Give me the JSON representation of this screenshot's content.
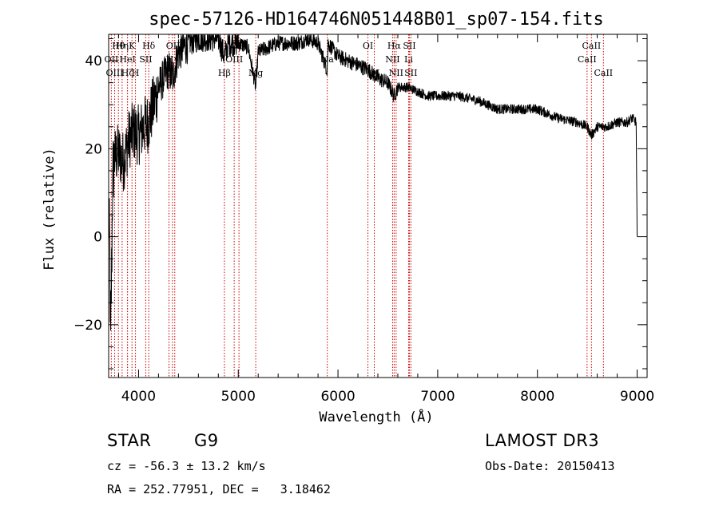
{
  "chart_data": {
    "type": "line",
    "title": "spec-57126-HD164746N051448B01_sp07-154.fits",
    "xlabel": "Wavelength (Å)",
    "ylabel": "Flux (relative)",
    "xlim": [
      3700,
      9100
    ],
    "ylim": [
      -32,
      46
    ],
    "xticks": [
      4000,
      5000,
      6000,
      7000,
      8000,
      9000
    ],
    "yticks": [
      -20,
      0,
      20,
      40
    ],
    "spectrum_anchors": {
      "x": [
        3700,
        3710,
        3720,
        3730,
        3740,
        3760,
        3800,
        3850,
        3900,
        3950,
        4000,
        4050,
        4100,
        4150,
        4200,
        4250,
        4300,
        4340,
        4400,
        4500,
        4600,
        4700,
        4800,
        4861,
        4900,
        5000,
        5100,
        5175,
        5200,
        5300,
        5400,
        5500,
        5600,
        5700,
        5800,
        5890,
        5900,
        6000,
        6100,
        6200,
        6300,
        6400,
        6500,
        6563,
        6600,
        6700,
        6800,
        6900,
        7000,
        7200,
        7400,
        7600,
        7800,
        8000,
        8200,
        8400,
        8500,
        8542,
        8600,
        8700,
        8800,
        8900,
        8950,
        8990,
        9000
      ],
      "y": [
        5,
        -2,
        -25,
        -8,
        14,
        18,
        19,
        17,
        22,
        24,
        23,
        25,
        26,
        30,
        34,
        36,
        38,
        36,
        42,
        44,
        45,
        45,
        45,
        41,
        44,
        44,
        43,
        34,
        42,
        43,
        44,
        44,
        44,
        45,
        44,
        38,
        44,
        41,
        40,
        39,
        38,
        36,
        35,
        32,
        34,
        34,
        33,
        32,
        32,
        32,
        31,
        29,
        29,
        29,
        27,
        26,
        25,
        23,
        25,
        25,
        26,
        26,
        27,
        26,
        0
      ]
    },
    "lines": [
      {
        "name": "Hθ",
        "wavelength": 3798,
        "row": 0
      },
      {
        "name": "Hη",
        "wavelength": 3835,
        "row": 0
      },
      {
        "name": "OII",
        "wavelength": 3727,
        "row": 1
      },
      {
        "name": "K",
        "wavelength": 3934,
        "row": 0
      },
      {
        "name": "H",
        "wavelength": 3969,
        "row": 2
      },
      {
        "name": "HeI",
        "wavelength": 3889,
        "row": 1
      },
      {
        "name": "OIII",
        "wavelength": 3760,
        "row": 2
      },
      {
        "name": "Hζ",
        "wavelength": 3889,
        "row": 2
      },
      {
        "name": "Hδ",
        "wavelength": 4102,
        "row": 0
      },
      {
        "name": "SII",
        "wavelength": 4072,
        "row": 1
      },
      {
        "name": "OIII",
        "wavelength": 4363,
        "row": 0
      },
      {
        "name": "Hγ",
        "wavelength": 4340,
        "row": 1
      },
      {
        "name": "G",
        "wavelength": 4305,
        "row": 2
      },
      {
        "name": "OIII",
        "wavelength": 5007,
        "row": 0
      },
      {
        "name": "OIII",
        "wavelength": 4959,
        "row": 1
      },
      {
        "name": "Hβ",
        "wavelength": 4861,
        "row": 2
      },
      {
        "name": "Mg",
        "wavelength": 5175,
        "row": 2
      },
      {
        "name": "Na",
        "wavelength": 5893,
        "row": 1
      },
      {
        "name": "OI",
        "wavelength": 6300,
        "row": 0
      },
      {
        "name": "OI",
        "wavelength": 6364,
        "row": 2
      },
      {
        "name": "Hα",
        "wavelength": 6563,
        "row": 0
      },
      {
        "name": "NII",
        "wavelength": 6548,
        "row": 1
      },
      {
        "name": "NII",
        "wavelength": 6583,
        "row": 2
      },
      {
        "name": "SII",
        "wavelength": 6716,
        "row": 0
      },
      {
        "name": "Li",
        "wavelength": 6708,
        "row": 1
      },
      {
        "name": "SII",
        "wavelength": 6731,
        "row": 2
      },
      {
        "name": "CaII",
        "wavelength": 8542,
        "row": 0
      },
      {
        "name": "CaII",
        "wavelength": 8498,
        "row": 1
      },
      {
        "name": "CaII",
        "wavelength": 8662,
        "row": 2
      }
    ]
  },
  "info": {
    "object_class": "STAR",
    "subclass": "G9",
    "survey": "LAMOST DR3",
    "redshift": "cz = -56.3 ± 13.2 km/s",
    "obs_date": "Obs-Date: 20150413",
    "coords": "RA = 252.77951, DEC =   3.18462"
  },
  "colors": {
    "spectrum": "#000000",
    "line_marker": "#cc0000",
    "axis": "#000000"
  }
}
